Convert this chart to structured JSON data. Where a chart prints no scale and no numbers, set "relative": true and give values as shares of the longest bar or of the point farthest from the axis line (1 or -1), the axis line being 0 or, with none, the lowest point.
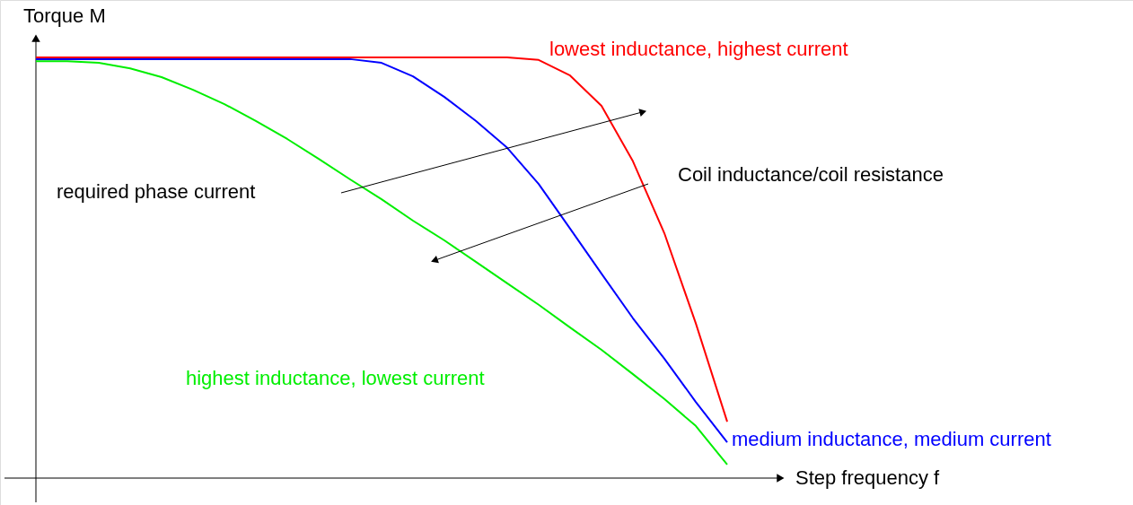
{
  "chart_data": {
    "type": "line",
    "relative": true,
    "xlabel": "Step frequency f",
    "ylabel": "Torque M",
    "categories": [
      null,
      null,
      null,
      null,
      null,
      null,
      null,
      null,
      null,
      null,
      null,
      null,
      null,
      null,
      null,
      null,
      null,
      null,
      null,
      null,
      null,
      null,
      null
    ],
    "series": [
      {
        "name": "lowest inductance, highest current",
        "color": "#ff0000",
        "values": [
          1,
          1,
          1,
          1,
          1,
          1,
          1,
          1,
          1,
          1,
          1,
          1,
          1,
          1,
          1,
          1,
          0.994,
          0.957,
          0.885,
          0.753,
          0.582,
          0.368,
          0.134
        ]
      },
      {
        "name": "medium inductance, medium current",
        "color": "#0000ff",
        "values": [
          0.996,
          0.996,
          0.996,
          0.996,
          0.996,
          0.996,
          0.996,
          0.996,
          0.996,
          0.996,
          0.996,
          0.987,
          0.955,
          0.906,
          0.849,
          0.785,
          0.699,
          0.593,
          0.486,
          0.38,
          0.284,
          0.181,
          0.085
        ]
      },
      {
        "name": "highest inductance, lowest current",
        "color": "#00ee00",
        "values": [
          0.991,
          0.991,
          0.987,
          0.974,
          0.953,
          0.923,
          0.889,
          0.849,
          0.806,
          0.759,
          0.71,
          0.663,
          0.612,
          0.565,
          0.514,
          0.463,
          0.412,
          0.358,
          0.305,
          0.247,
          0.188,
          0.124,
          0.032
        ]
      }
    ],
    "annotations": [
      "required phase current",
      "Coil inductance/coil resistance"
    ],
    "marker": "none",
    "line_style": "solid"
  }
}
